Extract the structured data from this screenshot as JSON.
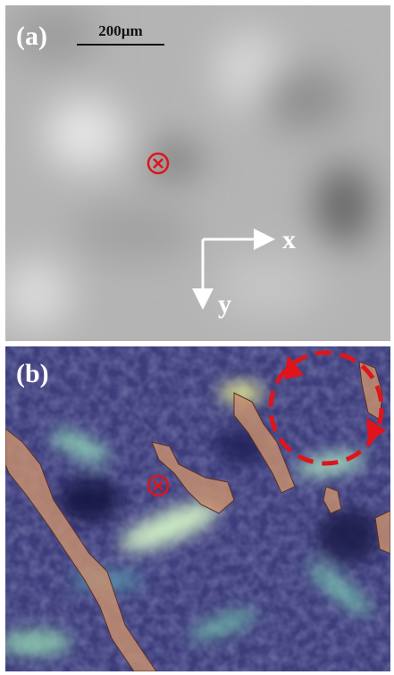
{
  "panels": [
    {
      "label": "(a)",
      "scale_bar": "200µm",
      "axes": {
        "x": "x",
        "y": "y"
      }
    },
    {
      "label": "(b)"
    }
  ]
}
